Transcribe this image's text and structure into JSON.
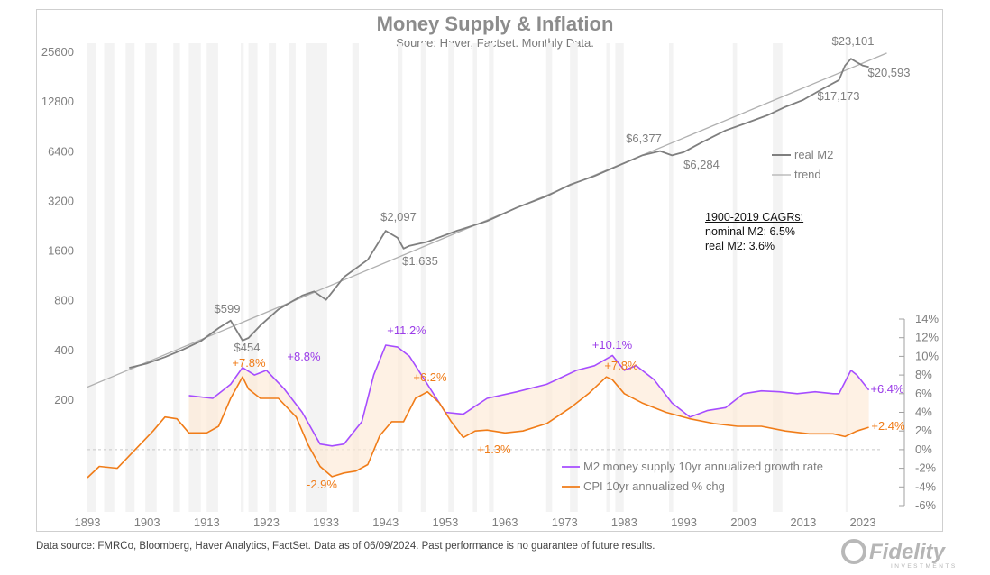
{
  "chart_data": {
    "type": "line",
    "title": "Money Supply & Inflation",
    "subtitle": "Source: Haver, Factset.  Monthly Data.",
    "x_ticks": [
      "1893",
      "1903",
      "1913",
      "1923",
      "1933",
      "1943",
      "1953",
      "1963",
      "1973",
      "1983",
      "1993",
      "2003",
      "2013",
      "2023"
    ],
    "left_axis": {
      "scale": "log",
      "ticks": [
        "25600",
        "12800",
        "6400",
        "3200",
        "1600",
        "800",
        "400",
        "200"
      ]
    },
    "right_axis": {
      "ticks": [
        "14%",
        "12%",
        "10%",
        "8%",
        "6%",
        "4%",
        "2%",
        "0%",
        "-2%",
        "-4%",
        "-6%"
      ],
      "ylim": [
        -6,
        14
      ]
    },
    "series": [
      {
        "name": "real M2",
        "axis": "left",
        "color": "#7f7f7f",
        "x": [
          1900,
          1903,
          1906,
          1909,
          1912,
          1915,
          1917,
          1919,
          1920,
          1922,
          1925,
          1929,
          1931,
          1933,
          1936,
          1940,
          1943,
          1945,
          1946,
          1947,
          1950,
          1955,
          1960,
          1965,
          1970,
          1974,
          1978,
          1982,
          1986,
          1989,
          1991,
          1993,
          1996,
          2000,
          2003,
          2007,
          2010,
          2013,
          2016,
          2019,
          2020,
          2021,
          2022,
          2023,
          2024
        ],
        "y": [
          310,
          330,
          360,
          400,
          450,
          540,
          599,
          454,
          470,
          560,
          700,
          850,
          900,
          800,
          1100,
          1400,
          2097,
          1900,
          1635,
          1700,
          1800,
          2100,
          2400,
          2900,
          3400,
          4000,
          4500,
          5200,
          6000,
          6377,
          6000,
          6284,
          7200,
          8500,
          9300,
          10500,
          11800,
          13000,
          15000,
          17173,
          21000,
          23101,
          22000,
          21000,
          20593
        ]
      },
      {
        "name": "trend",
        "axis": "left",
        "color": "#b0b0b0",
        "x": [
          1893,
          2027
        ],
        "y": [
          237,
          25000
        ]
      },
      {
        "name": "M2 money supply 10yr annualized growth rate",
        "axis": "right",
        "color": "#a64dff",
        "x": [
          1910,
          1914,
          1917,
          1919,
          1921,
          1923,
          1926,
          1929,
          1932,
          1934,
          1936,
          1939,
          1941,
          1943,
          1945,
          1947,
          1950,
          1953,
          1956,
          1960,
          1965,
          1970,
          1975,
          1978,
          1981,
          1983,
          1985,
          1988,
          1991,
          1994,
          1997,
          2000,
          2003,
          2006,
          2009,
          2012,
          2015,
          2018,
          2019,
          2021,
          2022,
          2024
        ],
        "y": [
          5.8,
          5.5,
          7.0,
          8.8,
          8.0,
          8.5,
          6.5,
          4.0,
          0.6,
          0.4,
          0.6,
          3.0,
          8.0,
          11.2,
          11.0,
          10.0,
          7.0,
          4.0,
          3.8,
          5.5,
          6.2,
          7.0,
          8.5,
          9.0,
          10.1,
          8.5,
          9.0,
          7.5,
          5.0,
          3.5,
          4.2,
          4.5,
          6.0,
          6.3,
          6.2,
          6.0,
          6.2,
          6.0,
          6.0,
          8.5,
          8.0,
          6.4
        ]
      },
      {
        "name": "CPI 10yr annualized % chg",
        "axis": "right",
        "color": "#f07c18",
        "x": [
          1893,
          1895,
          1898,
          1901,
          1904,
          1906,
          1908,
          1910,
          1913,
          1915,
          1917,
          1919,
          1920,
          1922,
          1925,
          1928,
          1930,
          1932,
          1934,
          1936,
          1938,
          1940,
          1942,
          1944,
          1946,
          1948,
          1950,
          1952,
          1954,
          1956,
          1958,
          1960,
          1963,
          1966,
          1970,
          1974,
          1977,
          1980,
          1981,
          1983,
          1986,
          1990,
          1994,
          1998,
          2002,
          2006,
          2010,
          2014,
          2018,
          2020,
          2022,
          2024
        ],
        "y": [
          -3.0,
          -1.8,
          -2.0,
          0.0,
          2.0,
          3.5,
          3.3,
          1.8,
          1.8,
          2.5,
          5.5,
          7.8,
          6.5,
          5.5,
          5.5,
          3.5,
          0.5,
          -1.8,
          -2.9,
          -2.5,
          -2.3,
          -1.6,
          1.5,
          3.0,
          3.0,
          5.5,
          6.2,
          5.0,
          3.0,
          1.3,
          2.0,
          2.1,
          1.8,
          2.0,
          2.8,
          4.5,
          6.0,
          7.8,
          7.5,
          6.0,
          5.0,
          4.0,
          3.3,
          2.8,
          2.5,
          2.5,
          2.0,
          1.7,
          1.7,
          1.4,
          2.0,
          2.4
        ]
      }
    ],
    "annotations": {
      "real_m2": [
        "$599",
        "$454",
        "$2,097",
        "$1,635",
        "$6,377",
        "$6,284",
        "$17,173",
        "$23,101",
        "$20,593"
      ],
      "m2_growth": [
        "+8.8%",
        "+11.2%",
        "+10.1%",
        "+6.4%"
      ],
      "cpi": [
        "+7.8%",
        "-2.9%",
        "+6.2%",
        "+1.3%",
        "+7.8%",
        "+2.4%"
      ]
    },
    "cagr_box": {
      "heading": "1900-2019 CAGRs:",
      "line1": "nominal M2: 6.5%",
      "line2": "real M2: 3.6%"
    },
    "legend_top": [
      "real M2",
      "trend"
    ],
    "legend_bottom": [
      "M2 money supply 10yr annualized growth rate",
      "CPI 10yr annualized % chg"
    ]
  },
  "footnote": "Data source: FMRCo, Bloomberg, Haver Analytics, FactSet. Data as of 06/09/2024. Past performance is no guarantee of future results.",
  "logo_text": "Fidelity",
  "logo_subtext": "INVESTMENTS"
}
